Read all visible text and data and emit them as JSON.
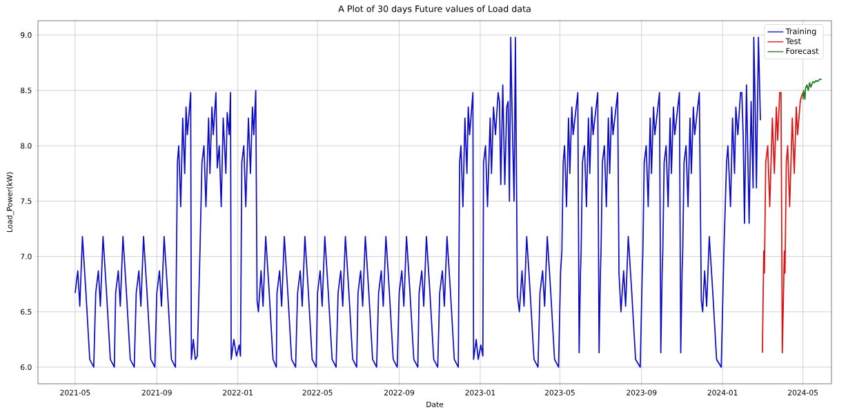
{
  "chart_data": {
    "type": "line",
    "title": "A Plot of 30 days Future values of Load data",
    "xlabel": "Date",
    "ylabel": "Load_Power(kW)",
    "xlim": [
      "2021-03-06",
      "2024-06-13"
    ],
    "ylim": [
      5.85,
      9.13
    ],
    "xticks": [
      "2021-05",
      "2021-09",
      "2022-01",
      "2022-05",
      "2022-09",
      "2023-01",
      "2023-05",
      "2023-09",
      "2024-01",
      "2024-05"
    ],
    "yticks": [
      {
        "value": 6,
        "label": "6.0"
      },
      {
        "value": 6.5,
        "label": "6.5"
      },
      {
        "value": 7,
        "label": "7.0"
      },
      {
        "value": 7.5,
        "label": "7.5"
      },
      {
        "value": 8,
        "label": "8.0"
      },
      {
        "value": 8.5,
        "label": "8.5"
      },
      {
        "value": 9,
        "label": "9.0"
      }
    ],
    "grid": true,
    "legend": "top right",
    "line_style": "solid",
    "series": [
      {
        "name": "Training",
        "color": "#0a0ac8",
        "x": [
          "2021-05-01",
          "2021-05-05",
          "2021-05-08",
          "2021-05-12",
          "2021-05-17",
          "2021-05-23",
          "2021-05-29",
          "2021-06-01",
          "2021-06-05",
          "2021-06-08",
          "2021-06-12",
          "2021-06-17",
          "2021-06-23",
          "2021-06-29",
          "2021-07-01",
          "2021-07-05",
          "2021-07-08",
          "2021-07-12",
          "2021-07-17",
          "2021-07-23",
          "2021-07-29",
          "2021-08-01",
          "2021-08-05",
          "2021-08-08",
          "2021-08-12",
          "2021-08-17",
          "2021-08-23",
          "2021-08-29",
          "2021-09-01",
          "2021-09-05",
          "2021-09-08",
          "2021-09-12",
          "2021-09-17",
          "2021-09-23",
          "2021-09-29",
          "2021-10-02",
          "2021-10-04",
          "2021-10-07",
          "2021-10-10",
          "2021-10-13",
          "2021-10-15",
          "2021-10-17",
          "2021-10-22",
          "2021-10-23",
          "2021-10-26",
          "2021-10-29",
          "2021-11-01",
          "2021-11-05",
          "2021-11-08",
          "2021-11-11",
          "2021-11-14",
          "2021-11-18",
          "2021-11-20",
          "2021-11-23",
          "2021-11-25",
          "2021-11-29",
          "2021-12-01",
          "2021-12-04",
          "2021-12-07",
          "2021-12-10",
          "2021-12-14",
          "2021-12-16",
          "2021-12-19",
          "2021-12-21",
          "2021-12-22",
          "2021-12-26",
          "2021-12-30",
          "2022-01-03",
          "2022-01-05",
          "2022-01-07",
          "2022-01-10",
          "2022-01-13",
          "2022-01-17",
          "2022-01-20",
          "2022-01-23",
          "2022-01-25",
          "2022-01-28",
          "2022-01-30",
          "2022-02-01",
          "2022-02-05",
          "2022-02-08",
          "2022-02-12",
          "2022-02-17",
          "2022-02-23",
          "2022-02-28",
          "2022-03-01",
          "2022-03-05",
          "2022-03-08",
          "2022-03-12",
          "2022-03-17",
          "2022-03-23",
          "2022-03-29",
          "2022-04-01",
          "2022-04-05",
          "2022-04-08",
          "2022-04-12",
          "2022-04-17",
          "2022-04-23",
          "2022-04-29",
          "2022-05-01",
          "2022-05-05",
          "2022-05-08",
          "2022-05-12",
          "2022-05-17",
          "2022-05-23",
          "2022-05-29",
          "2022-06-01",
          "2022-06-05",
          "2022-06-08",
          "2022-06-12",
          "2022-06-17",
          "2022-06-23",
          "2022-06-29",
          "2022-07-01",
          "2022-07-05",
          "2022-07-08",
          "2022-07-12",
          "2022-07-17",
          "2022-07-23",
          "2022-07-29",
          "2022-08-01",
          "2022-08-05",
          "2022-08-08",
          "2022-08-12",
          "2022-08-17",
          "2022-08-23",
          "2022-08-29",
          "2022-09-01",
          "2022-09-05",
          "2022-09-08",
          "2022-09-12",
          "2022-09-17",
          "2022-09-23",
          "2022-09-29",
          "2022-10-01",
          "2022-10-05",
          "2022-10-08",
          "2022-10-12",
          "2022-10-17",
          "2022-10-23",
          "2022-10-29",
          "2022-11-01",
          "2022-11-05",
          "2022-11-08",
          "2022-11-12",
          "2022-11-17",
          "2022-11-23",
          "2022-11-29",
          "2022-12-01",
          "2022-12-03",
          "2022-12-06",
          "2022-12-09",
          "2022-12-12",
          "2022-12-14",
          "2022-12-16",
          "2022-12-21",
          "2022-12-22",
          "2022-12-26",
          "2022-12-29",
          "2023-01-02",
          "2023-01-05",
          "2023-01-06",
          "2023-01-09",
          "2023-01-12",
          "2023-01-16",
          "2023-01-18",
          "2023-01-21",
          "2023-01-24",
          "2023-01-28",
          "2023-01-30",
          "2023-02-01",
          "2023-02-04",
          "2023-02-07",
          "2023-02-10",
          "2023-02-12",
          "2023-02-14",
          "2023-02-16",
          "2023-02-18",
          "2023-02-21",
          "2023-02-23",
          "2023-02-26",
          "2023-03-01",
          "2023-03-05",
          "2023-03-08",
          "2023-03-12",
          "2023-03-17",
          "2023-03-23",
          "2023-03-29",
          "2023-04-01",
          "2023-04-05",
          "2023-04-08",
          "2023-04-12",
          "2023-04-17",
          "2023-04-23",
          "2023-04-29",
          "2023-05-02",
          "2023-05-04",
          "2023-05-06",
          "2023-05-08",
          "2023-05-11",
          "2023-05-14",
          "2023-05-16",
          "2023-05-19",
          "2023-05-21",
          "2023-05-28",
          "2023-05-30",
          "2023-06-01",
          "2023-06-02",
          "2023-06-04",
          "2023-06-07",
          "2023-06-10",
          "2023-06-13",
          "2023-06-15",
          "2023-06-18",
          "2023-06-20",
          "2023-06-27",
          "2023-06-29",
          "2023-07-01",
          "2023-07-02",
          "2023-07-04",
          "2023-07-07",
          "2023-07-10",
          "2023-07-13",
          "2023-07-15",
          "2023-07-18",
          "2023-07-20",
          "2023-07-27",
          "2023-07-29",
          "2023-08-01",
          "2023-08-05",
          "2023-08-08",
          "2023-08-12",
          "2023-08-17",
          "2023-08-23",
          "2023-08-30",
          "2023-09-02",
          "2023-09-03",
          "2023-09-05",
          "2023-09-08",
          "2023-09-11",
          "2023-09-14",
          "2023-09-16",
          "2023-09-19",
          "2023-09-21",
          "2023-09-28",
          "2023-09-30",
          "2023-10-02",
          "2023-10-03",
          "2023-10-05",
          "2023-10-08",
          "2023-10-11",
          "2023-10-14",
          "2023-10-16",
          "2023-10-19",
          "2023-10-21",
          "2023-10-28",
          "2023-10-30",
          "2023-11-01",
          "2023-11-02",
          "2023-11-04",
          "2023-11-07",
          "2023-11-10",
          "2023-11-13",
          "2023-11-15",
          "2023-11-18",
          "2023-11-20",
          "2023-11-27",
          "2023-11-30",
          "2023-12-02",
          "2023-12-05",
          "2023-12-08",
          "2023-12-12",
          "2023-12-17",
          "2023-12-23",
          "2023-12-30",
          "2024-01-03",
          "2024-01-07",
          "2024-01-09",
          "2024-01-13",
          "2024-01-16",
          "2024-01-19",
          "2024-01-21",
          "2024-01-24",
          "2024-01-28",
          "2024-01-30",
          "2024-02-01",
          "2024-02-03",
          "2024-02-06",
          "2024-02-10",
          "2024-02-13",
          "2024-02-16",
          "2024-02-17",
          "2024-02-19",
          "2024-02-21",
          "2024-02-24",
          "2024-02-27"
        ],
        "values": [
          6.67,
          6.87,
          6.55,
          7.18,
          6.7,
          6.07,
          6.0,
          6.67,
          6.87,
          6.55,
          7.18,
          6.7,
          6.07,
          6.0,
          6.67,
          6.87,
          6.55,
          7.18,
          6.7,
          6.07,
          6.0,
          6.67,
          6.87,
          6.55,
          7.18,
          6.7,
          6.07,
          6.0,
          6.67,
          6.87,
          6.55,
          7.18,
          6.7,
          6.07,
          6.0,
          7.85,
          8.0,
          7.45,
          8.25,
          7.75,
          8.35,
          8.1,
          8.48,
          6.07,
          6.25,
          6.07,
          6.1,
          7.05,
          7.85,
          8.0,
          7.45,
          8.25,
          7.75,
          8.35,
          8.1,
          8.48,
          7.8,
          8.0,
          7.45,
          8.25,
          7.75,
          8.3,
          8.1,
          8.48,
          6.07,
          6.25,
          6.1,
          6.2,
          6.1,
          7.85,
          8.0,
          7.45,
          8.25,
          7.75,
          8.35,
          8.1,
          8.5,
          6.6,
          6.5,
          6.87,
          6.55,
          7.18,
          6.7,
          6.07,
          6.0,
          6.67,
          6.87,
          6.55,
          7.18,
          6.7,
          6.07,
          6.0,
          6.67,
          6.87,
          6.55,
          7.18,
          6.7,
          6.07,
          6.0,
          6.67,
          6.87,
          6.55,
          7.18,
          6.7,
          6.07,
          6.0,
          6.67,
          6.87,
          6.55,
          7.18,
          6.7,
          6.07,
          6.0,
          6.67,
          6.87,
          6.55,
          7.18,
          6.7,
          6.07,
          6.0,
          6.67,
          6.87,
          6.55,
          7.18,
          6.7,
          6.07,
          6.0,
          6.67,
          6.87,
          6.55,
          7.18,
          6.7,
          6.07,
          6.0,
          6.67,
          6.87,
          6.55,
          7.18,
          6.7,
          6.07,
          6.0,
          6.67,
          6.87,
          6.55,
          7.18,
          6.7,
          6.07,
          6.0,
          7.85,
          8.0,
          7.45,
          8.25,
          7.75,
          8.35,
          8.1,
          8.48,
          6.07,
          6.25,
          6.07,
          6.2,
          6.1,
          7.85,
          8.0,
          7.45,
          8.25,
          7.75,
          8.35,
          8.1,
          8.48,
          8.4,
          7.65,
          8.55,
          7.65,
          8.35,
          8.4,
          7.5,
          8.98,
          8.3,
          7.5,
          8.98,
          6.65,
          6.5,
          6.87,
          6.55,
          7.18,
          6.7,
          6.07,
          6.0,
          6.67,
          6.87,
          6.55,
          7.18,
          6.7,
          6.07,
          6.0,
          6.85,
          7.05,
          7.85,
          8.0,
          7.45,
          8.25,
          7.75,
          8.35,
          8.1,
          8.48,
          6.13,
          6.85,
          7.05,
          7.85,
          8.0,
          7.45,
          8.25,
          7.75,
          8.35,
          8.1,
          8.48,
          6.13,
          6.85,
          7.05,
          7.85,
          8.0,
          7.45,
          8.25,
          7.75,
          8.35,
          8.1,
          8.48,
          6.85,
          6.5,
          6.87,
          6.55,
          7.18,
          6.7,
          6.07,
          6.0,
          6.85,
          7.05,
          7.85,
          8.0,
          7.45,
          8.25,
          7.75,
          8.35,
          8.1,
          8.48,
          6.13,
          6.85,
          7.05,
          7.85,
          8.0,
          7.45,
          8.25,
          7.75,
          8.35,
          8.1,
          8.48,
          6.13,
          6.85,
          7.05,
          7.85,
          8.0,
          7.45,
          8.25,
          7.75,
          8.35,
          8.1,
          8.48,
          6.6,
          6.5,
          6.87,
          6.55,
          7.18,
          6.7,
          6.07,
          6.0,
          7.05,
          7.85,
          8.0,
          7.45,
          8.25,
          7.75,
          8.35,
          8.1,
          8.48,
          8.48,
          8.1,
          7.3,
          8.55,
          7.3,
          8.4,
          7.62,
          8.98,
          8.4,
          7.62,
          8.98,
          8.23
        ]
      },
      {
        "name": "Test",
        "color": "#dd1111",
        "x": [
          "2024-03-01",
          "2024-03-03",
          "2024-03-04",
          "2024-03-06",
          "2024-03-09",
          "2024-03-12",
          "2024-03-16",
          "2024-03-19",
          "2024-03-22",
          "2024-03-24",
          "2024-03-27",
          "2024-03-29",
          "2024-03-31",
          "2024-04-03",
          "2024-04-04",
          "2024-04-06",
          "2024-04-08",
          "2024-04-11",
          "2024-04-15",
          "2024-04-18",
          "2024-04-21",
          "2024-04-23",
          "2024-04-27",
          "2024-04-29",
          "2024-05-01"
        ],
        "values": [
          6.13,
          7.05,
          6.85,
          7.85,
          8.0,
          7.45,
          8.25,
          7.75,
          8.35,
          8.05,
          8.48,
          8.48,
          6.13,
          7.05,
          6.85,
          7.85,
          8.0,
          7.45,
          8.25,
          7.75,
          8.35,
          8.1,
          8.4,
          8.45,
          8.48
        ]
      },
      {
        "name": "Forecast",
        "color": "#1a7a1a",
        "x": [
          "2024-05-01",
          "2024-05-02",
          "2024-05-04",
          "2024-05-05",
          "2024-05-07",
          "2024-05-09",
          "2024-05-11",
          "2024-05-13",
          "2024-05-16",
          "2024-05-18",
          "2024-05-21",
          "2024-05-23",
          "2024-05-26",
          "2024-05-29"
        ],
        "values": [
          8.42,
          8.5,
          8.42,
          8.52,
          8.55,
          8.5,
          8.57,
          8.53,
          8.58,
          8.57,
          8.59,
          8.58,
          8.6,
          8.6
        ]
      }
    ]
  }
}
